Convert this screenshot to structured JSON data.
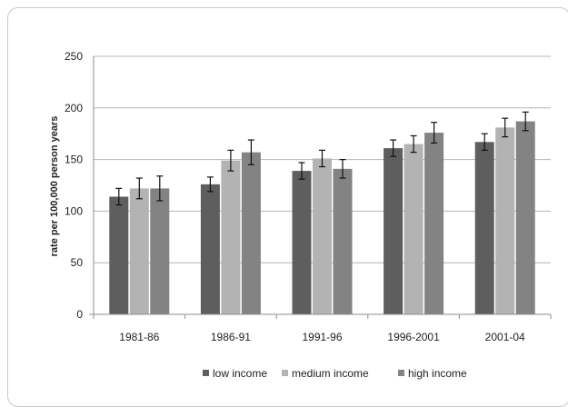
{
  "chart_data": {
    "type": "bar",
    "title": "",
    "xlabel": "",
    "ylabel": "rate per 100,000 person years",
    "ylim": [
      0,
      250
    ],
    "yticks": [
      0,
      50,
      100,
      150,
      200,
      250
    ],
    "grid": true,
    "legend_position": "bottom",
    "categories": [
      "1981-86",
      "1986-91",
      "1991-96",
      "1996-2001",
      "2001-04"
    ],
    "series": [
      {
        "name": "low income",
        "color": "#5e5e5e",
        "values": [
          114,
          126,
          139,
          161,
          167
        ],
        "errors": [
          8,
          7,
          8,
          8,
          8
        ]
      },
      {
        "name": "medium income",
        "color": "#b3b3b3",
        "values": [
          122,
          149,
          151,
          165,
          181
        ],
        "errors": [
          10,
          10,
          8,
          8,
          9
        ]
      },
      {
        "name": "high income",
        "color": "#838383",
        "values": [
          122,
          157,
          141,
          176,
          187
        ],
        "errors": [
          12,
          12,
          9,
          10,
          9
        ]
      }
    ]
  }
}
